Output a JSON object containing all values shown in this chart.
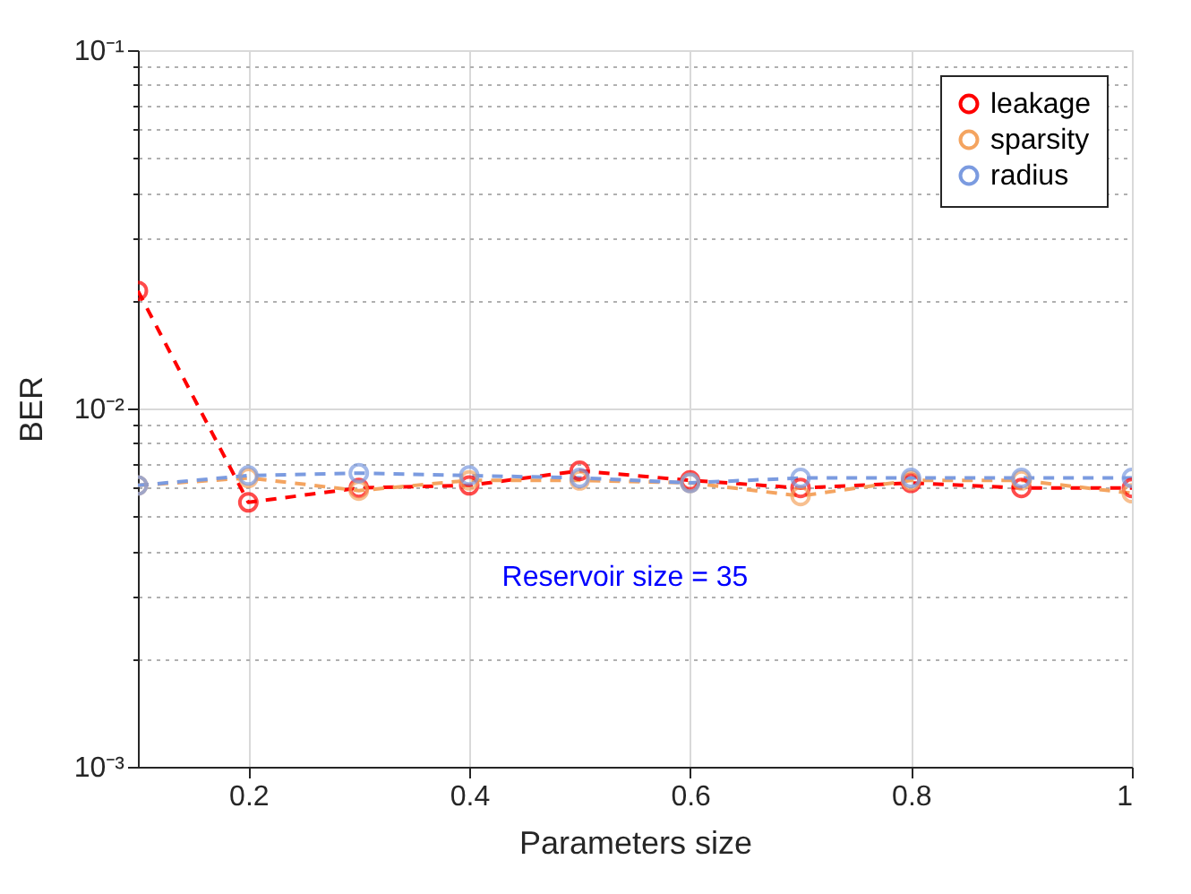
{
  "chart_data": {
    "type": "line",
    "xlabel": "Parameters size",
    "ylabel": "BER",
    "x": [
      0.1,
      0.2,
      0.3,
      0.4,
      0.5,
      0.6,
      0.7,
      0.8,
      0.9,
      1.0
    ],
    "series": [
      {
        "name": "leakage",
        "color": "#ff0000",
        "values": [
          0.0213,
          0.00547,
          0.006,
          0.0061,
          0.0067,
          0.0063,
          0.006,
          0.0062,
          0.006,
          0.006
        ]
      },
      {
        "name": "sparsity",
        "color": "#f4a460",
        "values": [
          0.0061,
          0.0064,
          0.0059,
          0.0063,
          0.0063,
          0.0062,
          0.0057,
          0.0063,
          0.0063,
          0.0058
        ]
      },
      {
        "name": "radius",
        "color": "#7b9be0",
        "values": [
          0.0061,
          0.0065,
          0.0066,
          0.0065,
          0.0064,
          0.0062,
          0.0064,
          0.0064,
          0.0064,
          0.0064
        ]
      }
    ],
    "log": true,
    "xlim": [
      0.1,
      1
    ],
    "xticks": [
      0.2,
      0.4,
      0.6,
      0.8,
      1
    ],
    "ylim": [
      0.001,
      0.1
    ],
    "yticks": [
      {
        "value": 0.001,
        "label": "10⁻³"
      },
      {
        "value": 0.002,
        "label": null
      },
      {
        "value": 0.003,
        "label": null
      },
      {
        "value": 0.004,
        "label": null
      },
      {
        "value": 0.005,
        "label": null
      },
      {
        "value": 0.006,
        "label": null
      },
      {
        "value": 0.007,
        "label": null
      },
      {
        "value": 0.008,
        "label": null
      },
      {
        "value": 0.009,
        "label": null
      },
      {
        "value": 0.01,
        "label": "10⁻²"
      },
      {
        "value": 0.02,
        "label": null
      },
      {
        "value": 0.03,
        "label": null
      },
      {
        "value": 0.04,
        "label": null
      },
      {
        "value": 0.05,
        "label": null
      },
      {
        "value": 0.06,
        "label": null
      },
      {
        "value": 0.07,
        "label": null
      },
      {
        "value": 0.08,
        "label": null
      },
      {
        "value": 0.09,
        "label": null
      },
      {
        "value": 0.1,
        "label": "10⁻¹"
      }
    ],
    "grid": true,
    "legend": "top right",
    "marker": "circle",
    "line_style": "dashed",
    "annotations": [
      "Reservoir size = 35"
    ]
  }
}
